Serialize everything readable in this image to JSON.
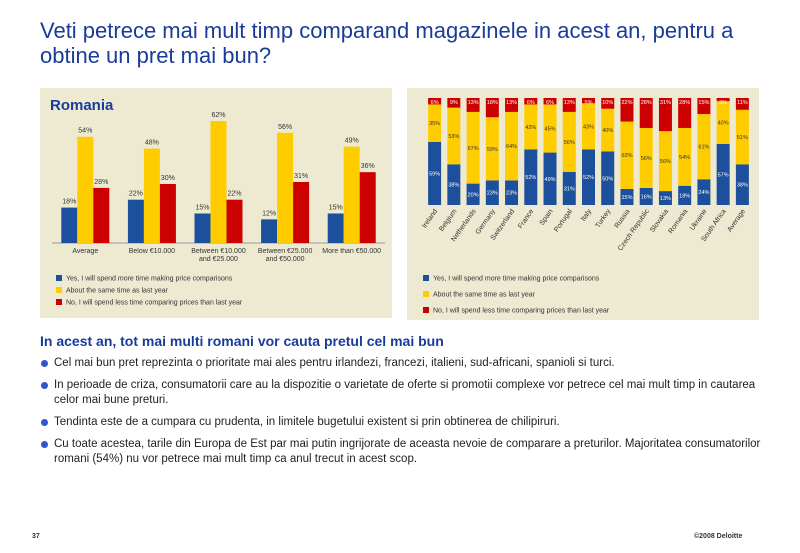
{
  "title": "Veti petrece mai mult timp comparand magazinele in acest an, pentru a obtine un pret mai bun?",
  "chart_data": [
    {
      "type": "bar",
      "title": "Romania",
      "categories": [
        "Average",
        "Below €10.000",
        "Between €10.000 and €25.000",
        "Between €25.000 and €50.000",
        "More than €50.000"
      ],
      "series": [
        {
          "name": "Yes, I will spend more time making price comparisons",
          "color": "#1c4f9c",
          "values": [
            18,
            22,
            15,
            12,
            15
          ],
          "value_labels": [
            "18%",
            "22%",
            "15%",
            "12%",
            "15%"
          ]
        },
        {
          "name": "About the same time as last year",
          "color": "#ffcc00",
          "values": [
            54,
            48,
            62,
            56,
            49
          ],
          "value_labels": [
            "54%",
            "48%",
            "62%",
            "56%",
            "49%"
          ]
        },
        {
          "name": "No, I will spend less time comparing prices than last year",
          "color": "#cc0000",
          "values": [
            28,
            30,
            22,
            31,
            36
          ],
          "value_labels": [
            "28%",
            "30%",
            "22%",
            "31%",
            "36%"
          ]
        }
      ]
    },
    {
      "type": "stacked_bar",
      "categories": [
        "Ireland",
        "Belgium",
        "Netherlands",
        "Germany",
        "Switzerland",
        "France",
        "Spain",
        "Portugal",
        "Italy",
        "Turkey",
        "Russia",
        "Czech Republic",
        "Slovakia",
        "Romania",
        "Ukraine",
        "South Africa",
        "Average"
      ],
      "series": [
        {
          "name": "Yes, I will spend more time making price comparisons",
          "color": "#1c4f9c",
          "values": [
            59,
            38,
            20,
            23,
            23,
            52,
            49,
            31,
            52,
            50,
            15,
            16,
            13,
            18,
            24,
            57,
            38
          ],
          "value_labels": [
            "59%",
            "38%",
            "20%",
            "23%",
            "23%",
            "52%",
            "49%",
            "31%",
            "52%",
            "50%",
            "15%",
            "16%",
            "13%",
            "18%",
            "24%",
            "57%",
            "38%"
          ]
        },
        {
          "name": "About the same time as last year",
          "color": "#ffcc00",
          "values": [
            35,
            53,
            67,
            59,
            64,
            42,
            45,
            56,
            43,
            40,
            63,
            56,
            56,
            54,
            61,
            40,
            51
          ],
          "value_labels": [
            "35%",
            "53%",
            "67%",
            "59%",
            "64%",
            "42%",
            "45%",
            "56%",
            "43%",
            "40%",
            "63%",
            "56%",
            "56%",
            "54%",
            "61%",
            "40%",
            "51%"
          ]
        },
        {
          "name": "No, I will spend less time comparing prices than last year",
          "color": "#cc0000",
          "values": [
            6,
            9,
            13,
            18,
            13,
            6,
            6,
            13,
            5,
            10,
            22,
            28,
            31,
            28,
            15,
            3,
            11
          ],
          "value_labels": [
            "6%",
            "9%",
            "13%",
            "18%",
            "13%",
            "6%",
            "6%",
            "13%",
            "5%",
            "10%",
            "22%",
            "28%",
            "31%",
            "28%",
            "15%",
            "3%",
            "11%"
          ]
        }
      ]
    }
  ],
  "section_heading": "In acest an, tot mai multi romani vor cauta pretul cel mai bun",
  "bullets": [
    "Cel mai bun pret reprezinta o prioritate mai ales pentru irlandezi, francezi, italieni, sud-africani, spanioli si turci.",
    "In perioade de criza, consumatorii care au la dispozitie o varietate de oferte si promotii complexe vor petrece cel mai mult timp in cautarea celor mai bune preturi.",
    "Tendinta este de a cumpara cu prudenta, in limitele bugetului existent si prin obtinerea de chilipiruri.",
    "Cu toate acestea, tarile din Europa de Est par mai putin ingrijorate de aceasta nevoie de comparare a preturilor. Majoritatea consumatorilor romani (54%) nu vor petrece mai mult timp ca anul trecut in acest scop."
  ],
  "footer": {
    "page": "37",
    "copyright": "©2008 Deloitte"
  }
}
